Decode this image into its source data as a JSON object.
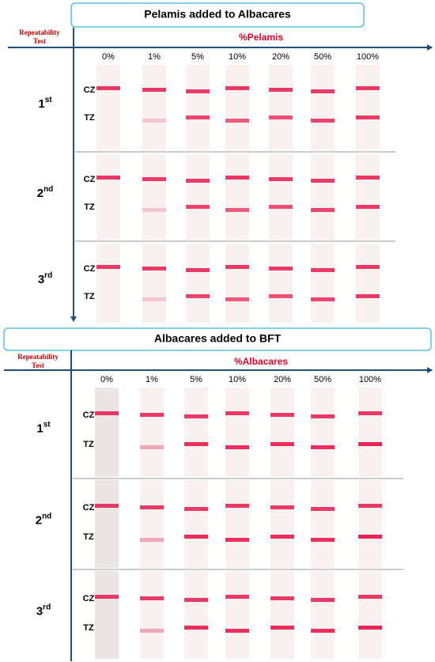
{
  "panels": [
    {
      "title": "Pelamis added to Albacares",
      "corner_label": [
        "Repeatability",
        "Test"
      ],
      "axis_label": "%Pelamis",
      "columns": [
        "0%",
        "1%",
        "5%",
        "10%",
        "20%",
        "50%",
        "100%"
      ],
      "rows": [
        {
          "ordinal": "1",
          "suffix": "st",
          "cz": "CZ",
          "tz": "TZ"
        },
        {
          "ordinal": "2",
          "suffix": "nd",
          "cz": "CZ",
          "tz": "TZ"
        },
        {
          "ordinal": "3",
          "suffix": "rd",
          "cz": "CZ",
          "tz": "TZ"
        }
      ]
    },
    {
      "title": "Albacares added to BFT",
      "corner_label": [
        "Repeatability",
        "Test"
      ],
      "axis_label": "%Albacares",
      "columns": [
        "0%",
        "1%",
        "5%",
        "10%",
        "20%",
        "50%",
        "100%"
      ],
      "rows": [
        {
          "ordinal": "1",
          "suffix": "st",
          "cz": "CZ",
          "tz": "TZ"
        },
        {
          "ordinal": "2",
          "suffix": "nd",
          "cz": "CZ",
          "tz": "TZ"
        },
        {
          "ordinal": "3",
          "suffix": "rd",
          "cz": "CZ",
          "tz": "TZ"
        }
      ]
    }
  ]
}
